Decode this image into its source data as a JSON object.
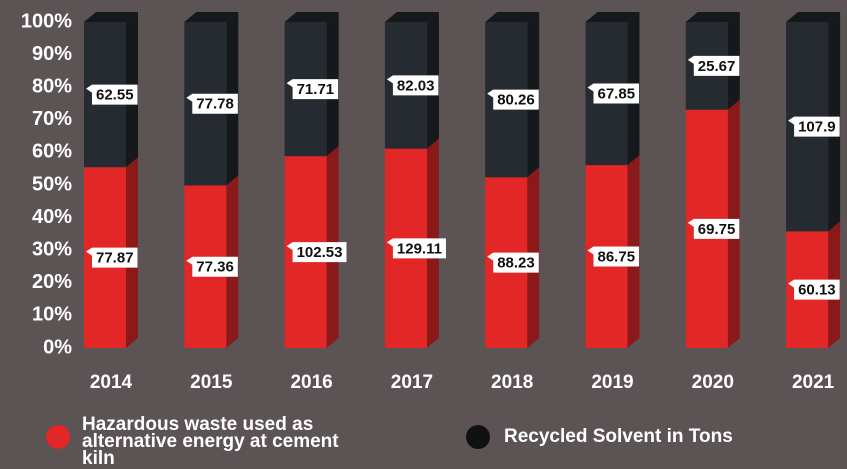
{
  "chart_data": {
    "type": "bar",
    "stacking": "percent",
    "categories": [
      "2014",
      "2015",
      "2016",
      "2017",
      "2018",
      "2019",
      "2020",
      "2021"
    ],
    "series": [
      {
        "name": "Hazardous waste used as alternative energy at cement kiln",
        "color": "#e32626",
        "side_color": "#8c1919",
        "values": [
          77.87,
          77.36,
          102.53,
          129.11,
          88.23,
          86.75,
          69.75,
          60.13
        ]
      },
      {
        "name": "Recycled Solvent in Tons",
        "color": "#252b31",
        "side_color": "#15191c",
        "values": [
          62.55,
          77.78,
          71.71,
          82.03,
          80.26,
          67.85,
          25.67,
          107.9
        ]
      }
    ],
    "ylim": [
      0,
      100
    ],
    "yticks": [
      {
        "value": 0,
        "label": "0%"
      },
      {
        "value": 10,
        "label": "10%"
      },
      {
        "value": 20,
        "label": "20%"
      },
      {
        "value": 30,
        "label": "30%"
      },
      {
        "value": 40,
        "label": "40%"
      },
      {
        "value": 50,
        "label": "50%"
      },
      {
        "value": 60,
        "label": "60%"
      },
      {
        "value": 70,
        "label": "70%"
      },
      {
        "value": 80,
        "label": "80%"
      },
      {
        "value": 90,
        "label": "90%"
      },
      {
        "value": 100,
        "label": "100%"
      }
    ]
  }
}
